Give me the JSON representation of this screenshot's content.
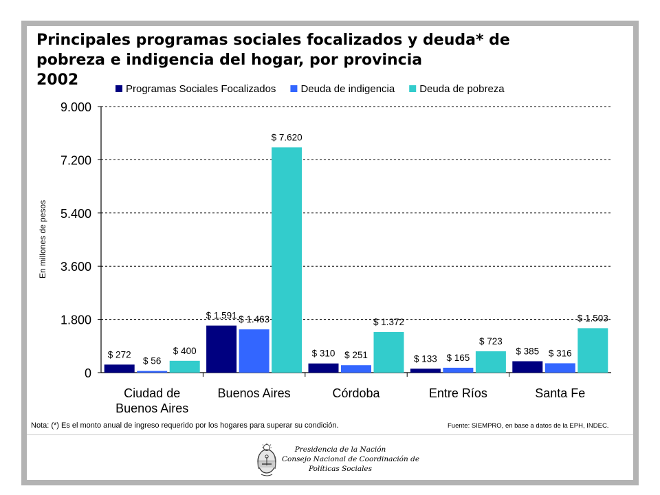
{
  "title_lines": [
    "Principales programas sociales focalizados y deuda* de",
    "pobreza e indigencia del hogar, por provincia",
    "2002"
  ],
  "note": "Nota: (*) Es el monto anual de ingreso requerido por los hogares para superar su condición.",
  "source": "Fuente: SIEMPRO, en base a datos de la EPH, INDEC.",
  "footer": {
    "lines": [
      "Presidencia de la Nación",
      "Consejo Nacional de Coordinación de",
      "Políticas Sociales"
    ]
  },
  "colors": {
    "series": [
      "#000080",
      "#3366ff",
      "#33cccc"
    ],
    "grid": "#000000",
    "frame": "#b3b3b3"
  },
  "chart_data": {
    "type": "bar",
    "ylabel": "En millones de pesos",
    "ylim": [
      0,
      9000
    ],
    "yticks": [
      0,
      1800,
      3600,
      5400,
      7200,
      9000
    ],
    "ytick_labels": [
      "0",
      "1.800",
      "3.600",
      "5.400",
      "7.200",
      "9.000"
    ],
    "grid": true,
    "grid_style": "dashed",
    "legend_position": "top",
    "categories": [
      [
        "Ciudad de",
        "Buenos Aires"
      ],
      [
        "Buenos Aires"
      ],
      [
        "Córdoba"
      ],
      [
        "Entre Ríos"
      ],
      [
        "Santa Fe"
      ]
    ],
    "series": [
      {
        "name": "Programas Sociales Focalizados",
        "values": [
          272,
          1591,
          310,
          133,
          385
        ],
        "labels": [
          "$ 272",
          "$ 1.591",
          "$ 310",
          "$ 133",
          "$ 385"
        ]
      },
      {
        "name": "Deuda de indigencia",
        "values": [
          56,
          1463,
          251,
          165,
          316
        ],
        "labels": [
          "$ 56",
          "$ 1.463",
          "$ 251",
          "$ 165",
          "$ 316"
        ]
      },
      {
        "name": "Deuda de pobreza",
        "values": [
          400,
          7620,
          1372,
          723,
          1503
        ],
        "labels": [
          "$ 400",
          "$ 7.620",
          "$ 1.372",
          "$ 723",
          "$ 1.503"
        ]
      }
    ]
  }
}
